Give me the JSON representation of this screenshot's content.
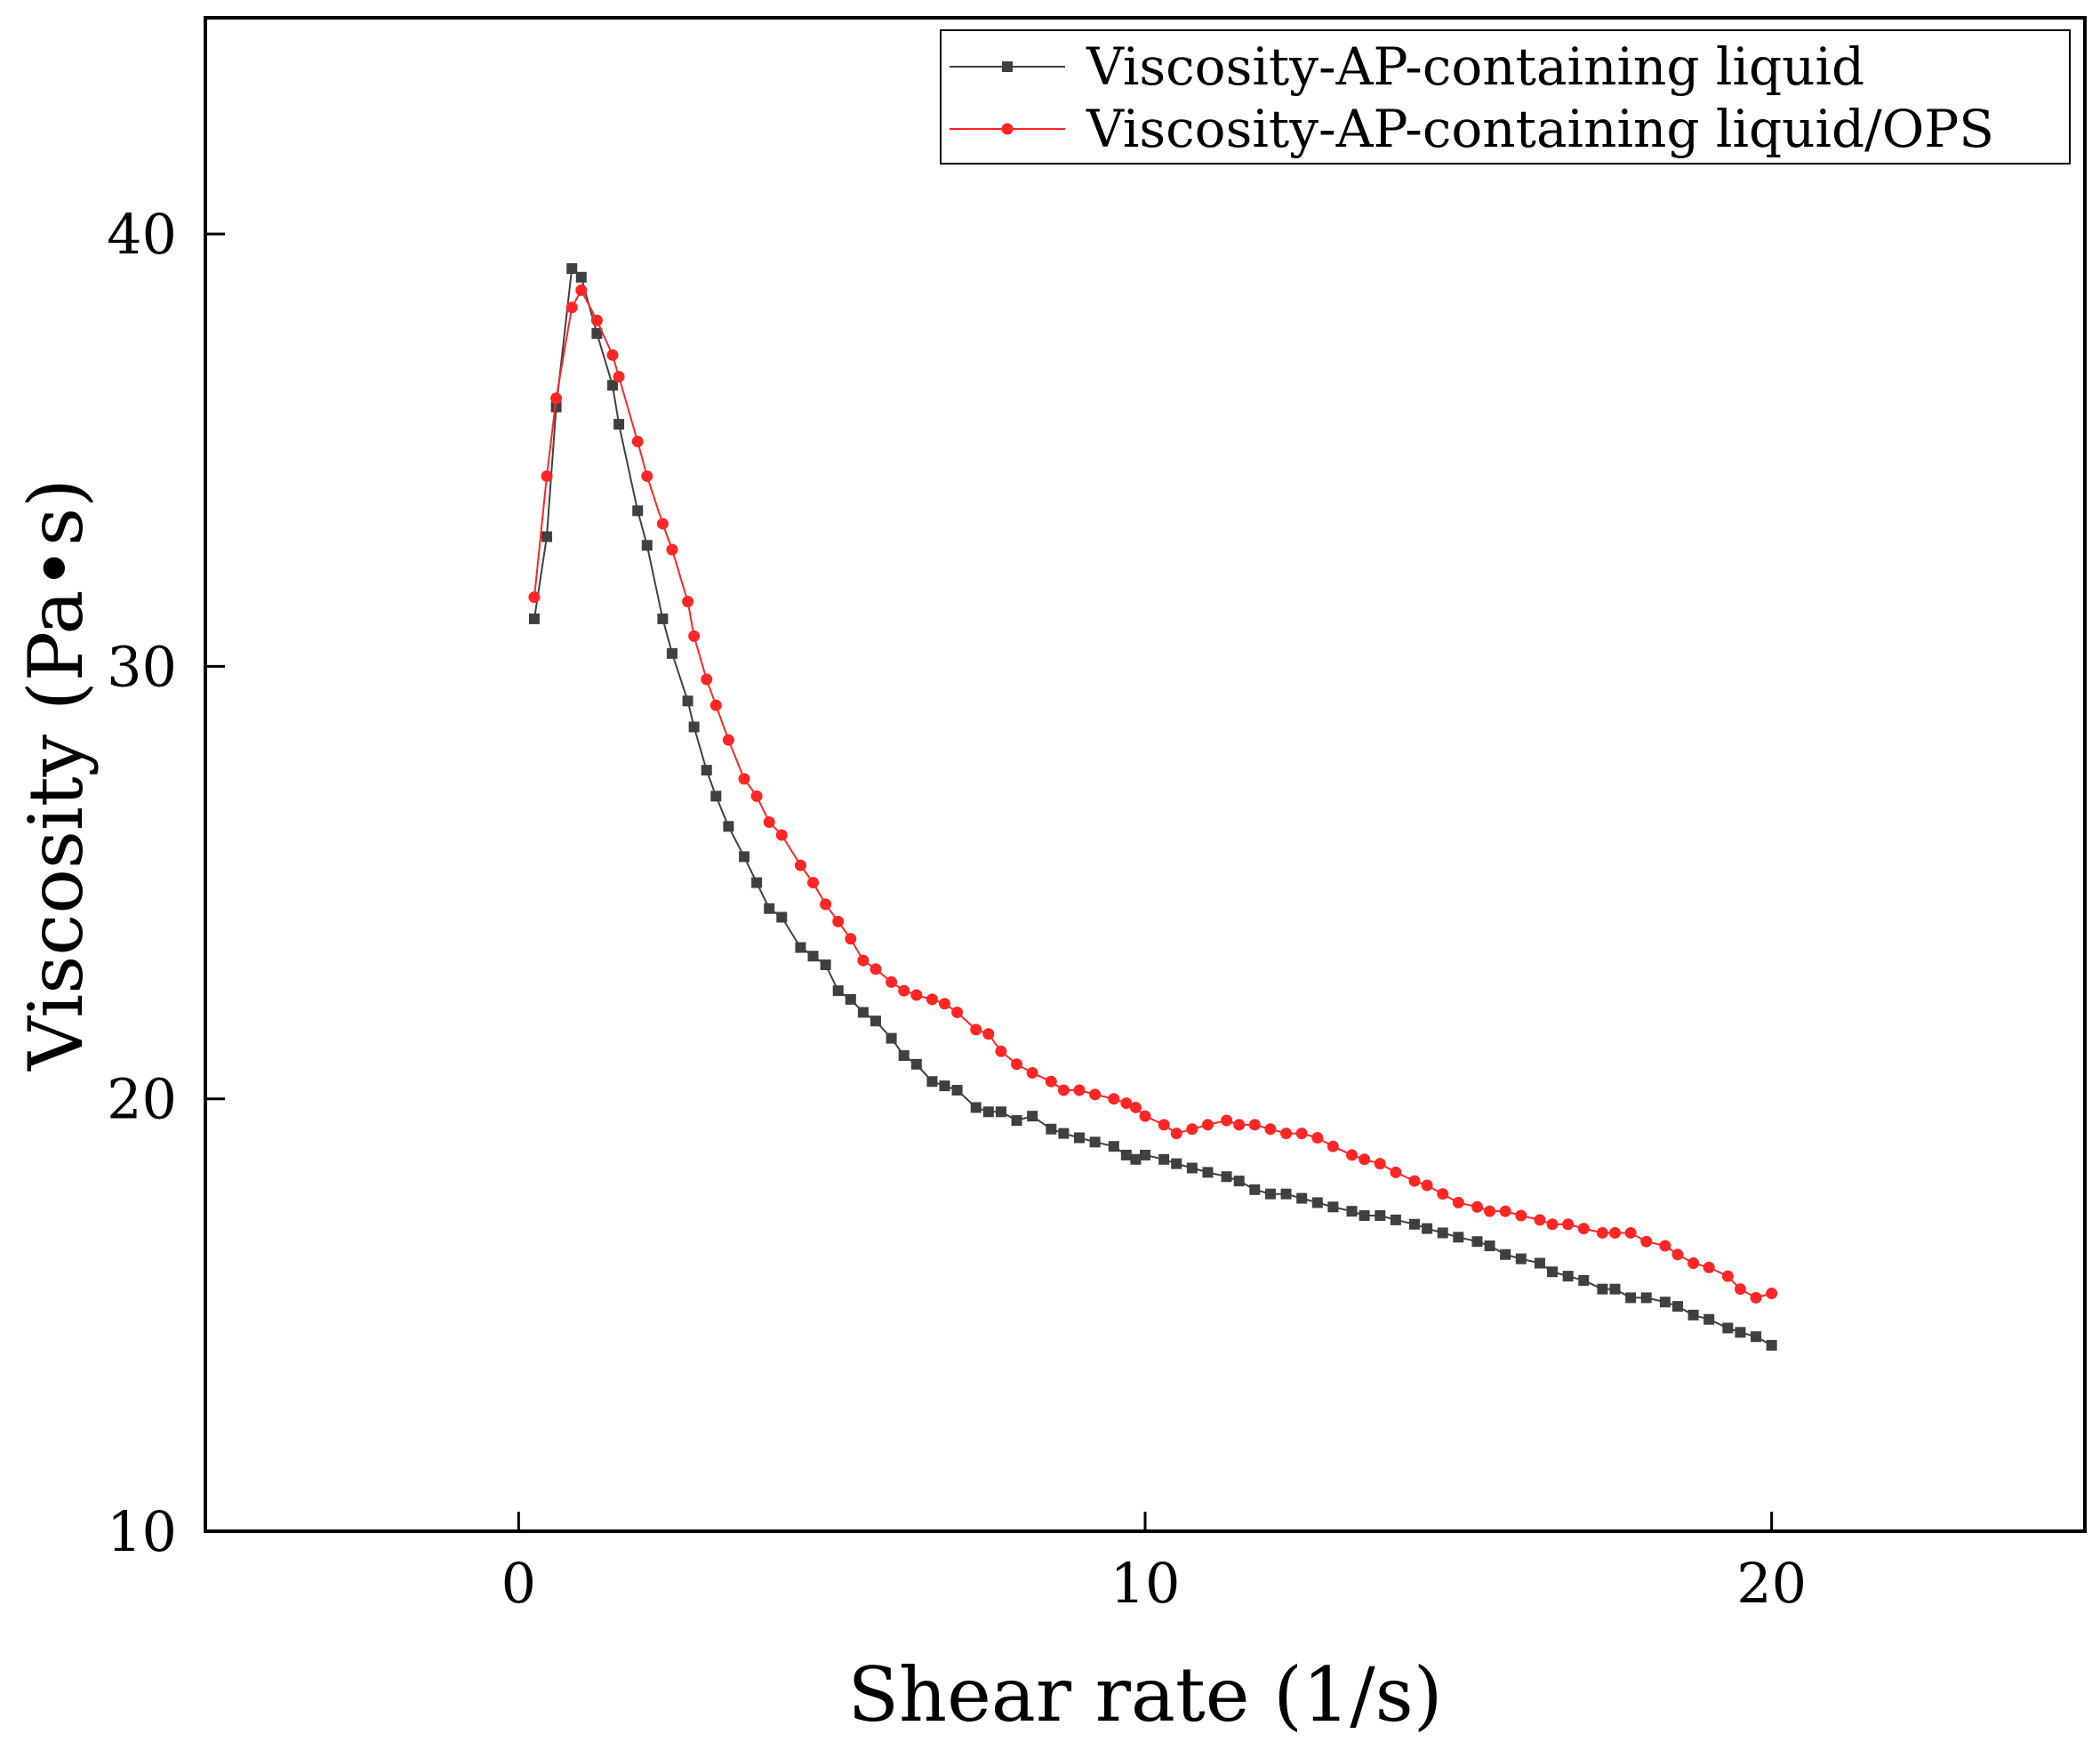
{
  "chart_data": {
    "type": "line",
    "title": "",
    "xlabel": "Shear rate (1/s)",
    "ylabel": "Viscosity (Pa•s)",
    "xlim": [
      -5,
      25
    ],
    "ylim": [
      10,
      45
    ],
    "xticks": [
      0,
      10,
      20
    ],
    "yticks": [
      10,
      20,
      30,
      40
    ],
    "xtick_labels": [
      "0",
      "10",
      "20"
    ],
    "ytick_labels": [
      "10",
      "20",
      "30",
      "40"
    ],
    "grid": false,
    "legend_position": "top-right",
    "series": [
      {
        "name": "Viscosity-AP-containing liquid",
        "color": "#404040",
        "marker": "square",
        "points": [
          [
            0.25,
            31.1
          ],
          [
            0.45,
            33.0
          ],
          [
            0.6,
            36.0
          ],
          [
            0.85,
            39.2
          ],
          [
            1.0,
            39.0
          ],
          [
            1.25,
            37.7
          ],
          [
            1.5,
            36.5
          ],
          [
            1.6,
            35.6
          ],
          [
            1.9,
            33.6
          ],
          [
            2.05,
            32.8
          ],
          [
            2.3,
            31.1
          ],
          [
            2.45,
            30.3
          ],
          [
            2.7,
            29.2
          ],
          [
            2.8,
            28.6
          ],
          [
            3.0,
            27.6
          ],
          [
            3.15,
            27.0
          ],
          [
            3.35,
            26.3
          ],
          [
            3.6,
            25.6
          ],
          [
            3.8,
            25.0
          ],
          [
            4.0,
            24.4
          ],
          [
            4.2,
            24.2
          ],
          [
            4.5,
            23.5
          ],
          [
            4.7,
            23.3
          ],
          [
            4.9,
            23.1
          ],
          [
            5.1,
            22.5
          ],
          [
            5.3,
            22.3
          ],
          [
            5.5,
            22.0
          ],
          [
            5.7,
            21.8
          ],
          [
            5.95,
            21.4
          ],
          [
            6.15,
            21.0
          ],
          [
            6.35,
            20.8
          ],
          [
            6.6,
            20.4
          ],
          [
            6.8,
            20.3
          ],
          [
            7.0,
            20.2
          ],
          [
            7.3,
            19.8
          ],
          [
            7.5,
            19.7
          ],
          [
            7.7,
            19.7
          ],
          [
            7.95,
            19.5
          ],
          [
            8.2,
            19.6
          ],
          [
            8.5,
            19.3
          ],
          [
            8.7,
            19.2
          ],
          [
            8.95,
            19.1
          ],
          [
            9.2,
            19.0
          ],
          [
            9.5,
            18.9
          ],
          [
            9.7,
            18.7
          ],
          [
            9.85,
            18.6
          ],
          [
            10.0,
            18.7
          ],
          [
            10.3,
            18.6
          ],
          [
            10.5,
            18.5
          ],
          [
            10.75,
            18.4
          ],
          [
            11.0,
            18.3
          ],
          [
            11.3,
            18.2
          ],
          [
            11.5,
            18.1
          ],
          [
            11.75,
            17.9
          ],
          [
            12.0,
            17.8
          ],
          [
            12.25,
            17.8
          ],
          [
            12.5,
            17.7
          ],
          [
            12.75,
            17.6
          ],
          [
            13.0,
            17.5
          ],
          [
            13.3,
            17.4
          ],
          [
            13.5,
            17.3
          ],
          [
            13.75,
            17.3
          ],
          [
            14.0,
            17.2
          ],
          [
            14.3,
            17.1
          ],
          [
            14.5,
            17.0
          ],
          [
            14.75,
            16.9
          ],
          [
            15.0,
            16.8
          ],
          [
            15.3,
            16.7
          ],
          [
            15.5,
            16.6
          ],
          [
            15.75,
            16.4
          ],
          [
            16.0,
            16.3
          ],
          [
            16.3,
            16.2
          ],
          [
            16.5,
            16.0
          ],
          [
            16.75,
            15.9
          ],
          [
            17.0,
            15.8
          ],
          [
            17.3,
            15.6
          ],
          [
            17.5,
            15.6
          ],
          [
            17.75,
            15.4
          ],
          [
            18.0,
            15.4
          ],
          [
            18.3,
            15.3
          ],
          [
            18.5,
            15.2
          ],
          [
            18.75,
            15.0
          ],
          [
            19.0,
            14.9
          ],
          [
            19.3,
            14.7
          ],
          [
            19.5,
            14.6
          ],
          [
            19.75,
            14.5
          ],
          [
            20.0,
            14.3
          ]
        ]
      },
      {
        "name": "Viscosity-AP-containing liquid/OPS",
        "color": "#ff2626",
        "marker": "circle",
        "points": [
          [
            0.25,
            31.6
          ],
          [
            0.45,
            34.4
          ],
          [
            0.6,
            36.2
          ],
          [
            0.85,
            38.3
          ],
          [
            1.0,
            38.7
          ],
          [
            1.25,
            38.0
          ],
          [
            1.5,
            37.2
          ],
          [
            1.6,
            36.7
          ],
          [
            1.9,
            35.2
          ],
          [
            2.05,
            34.4
          ],
          [
            2.3,
            33.3
          ],
          [
            2.45,
            32.7
          ],
          [
            2.7,
            31.5
          ],
          [
            2.8,
            30.7
          ],
          [
            3.0,
            29.7
          ],
          [
            3.15,
            29.1
          ],
          [
            3.35,
            28.3
          ],
          [
            3.6,
            27.4
          ],
          [
            3.8,
            27.0
          ],
          [
            4.0,
            26.4
          ],
          [
            4.2,
            26.1
          ],
          [
            4.5,
            25.4
          ],
          [
            4.7,
            25.0
          ],
          [
            4.9,
            24.5
          ],
          [
            5.1,
            24.1
          ],
          [
            5.3,
            23.7
          ],
          [
            5.5,
            23.2
          ],
          [
            5.7,
            23.0
          ],
          [
            5.95,
            22.7
          ],
          [
            6.15,
            22.5
          ],
          [
            6.35,
            22.4
          ],
          [
            6.6,
            22.3
          ],
          [
            6.8,
            22.2
          ],
          [
            7.0,
            22.0
          ],
          [
            7.3,
            21.6
          ],
          [
            7.5,
            21.5
          ],
          [
            7.7,
            21.1
          ],
          [
            7.95,
            20.8
          ],
          [
            8.2,
            20.6
          ],
          [
            8.5,
            20.4
          ],
          [
            8.7,
            20.2
          ],
          [
            8.95,
            20.2
          ],
          [
            9.2,
            20.1
          ],
          [
            9.5,
            20.0
          ],
          [
            9.7,
            19.9
          ],
          [
            9.85,
            19.8
          ],
          [
            10.0,
            19.6
          ],
          [
            10.3,
            19.4
          ],
          [
            10.5,
            19.2
          ],
          [
            10.75,
            19.3
          ],
          [
            11.0,
            19.4
          ],
          [
            11.3,
            19.5
          ],
          [
            11.5,
            19.4
          ],
          [
            11.75,
            19.4
          ],
          [
            12.0,
            19.3
          ],
          [
            12.25,
            19.2
          ],
          [
            12.5,
            19.2
          ],
          [
            12.75,
            19.1
          ],
          [
            13.0,
            18.9
          ],
          [
            13.3,
            18.7
          ],
          [
            13.5,
            18.6
          ],
          [
            13.75,
            18.5
          ],
          [
            14.0,
            18.3
          ],
          [
            14.3,
            18.1
          ],
          [
            14.5,
            18.0
          ],
          [
            14.75,
            17.8
          ],
          [
            15.0,
            17.6
          ],
          [
            15.3,
            17.5
          ],
          [
            15.5,
            17.4
          ],
          [
            15.75,
            17.4
          ],
          [
            16.0,
            17.3
          ],
          [
            16.3,
            17.2
          ],
          [
            16.5,
            17.1
          ],
          [
            16.75,
            17.1
          ],
          [
            17.0,
            17.0
          ],
          [
            17.3,
            16.9
          ],
          [
            17.5,
            16.9
          ],
          [
            17.75,
            16.9
          ],
          [
            18.0,
            16.7
          ],
          [
            18.3,
            16.6
          ],
          [
            18.5,
            16.4
          ],
          [
            18.75,
            16.2
          ],
          [
            19.0,
            16.1
          ],
          [
            19.3,
            15.9
          ],
          [
            19.5,
            15.6
          ],
          [
            19.75,
            15.4
          ],
          [
            20.0,
            15.5
          ]
        ]
      }
    ]
  }
}
